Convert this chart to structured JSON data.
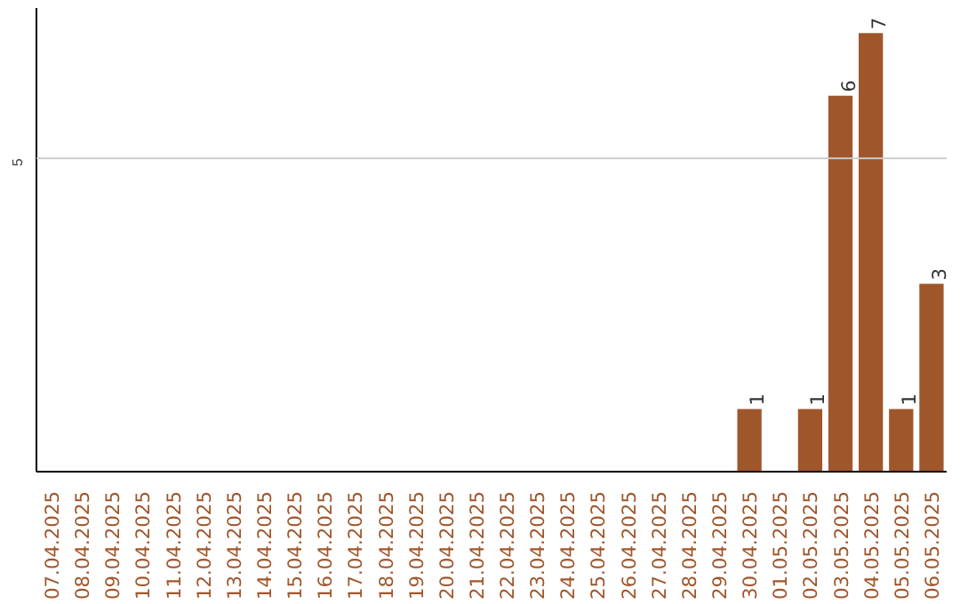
{
  "chart_data": {
    "type": "bar",
    "categories": [
      "07.04.2025",
      "08.04.2025",
      "09.04.2025",
      "10.04.2025",
      "11.04.2025",
      "12.04.2025",
      "13.04.2025",
      "14.04.2025",
      "15.04.2025",
      "16.04.2025",
      "17.04.2025",
      "18.04.2025",
      "19.04.2025",
      "20.04.2025",
      "21.04.2025",
      "22.04.2025",
      "23.04.2025",
      "24.04.2025",
      "25.04.2025",
      "26.04.2025",
      "27.04.2025",
      "28.04.2025",
      "29.04.2025",
      "30.04.2025",
      "01.05.2025",
      "02.05.2025",
      "03.05.2025",
      "04.05.2025",
      "05.05.2025",
      "06.05.2025"
    ],
    "values": [
      null,
      null,
      null,
      null,
      null,
      null,
      null,
      null,
      null,
      null,
      null,
      null,
      null,
      null,
      null,
      null,
      null,
      null,
      null,
      null,
      null,
      null,
      null,
      1,
      null,
      1,
      6,
      7,
      1,
      3
    ],
    "ylim": [
      0,
      7.4
    ],
    "value_labels": [
      null,
      null,
      null,
      null,
      null,
      null,
      null,
      null,
      null,
      null,
      null,
      null,
      null,
      null,
      null,
      null,
      null,
      null,
      null,
      null,
      null,
      null,
      null,
      "1",
      null,
      "1",
      "6",
      "7",
      "1",
      "3"
    ],
    "color": "#a0562b",
    "ref_lines": [
      {
        "axis": "y",
        "value": 5,
        "label": "5",
        "color": "#cccccc"
      }
    ]
  }
}
